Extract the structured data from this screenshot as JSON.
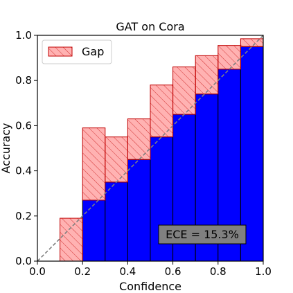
{
  "chart_data": {
    "type": "bar",
    "title": "GAT on Cora",
    "xlabel": "Confidence",
    "ylabel": "Accuracy",
    "xlim": [
      0.0,
      1.0
    ],
    "ylim": [
      0.0,
      1.0
    ],
    "xticks": [
      "0.0",
      "0.2",
      "0.4",
      "0.6",
      "0.8",
      "1.0"
    ],
    "yticks": [
      "0.0",
      "0.2",
      "0.4",
      "0.6",
      "0.8",
      "1.0"
    ],
    "bin_edges": [
      0.1,
      0.2,
      0.3,
      0.4,
      0.5,
      0.6,
      0.7,
      0.8,
      0.9,
      1.0
    ],
    "accuracy": [
      0.0,
      0.27,
      0.35,
      0.45,
      0.55,
      0.65,
      0.74,
      0.85,
      0.95
    ],
    "confidence": [
      0.19,
      0.59,
      0.55,
      0.63,
      0.78,
      0.86,
      0.91,
      0.955,
      0.985
    ],
    "legend": {
      "label": "Gap",
      "location": "upper-left"
    },
    "annotation": "ECE = 15.3%",
    "colors": {
      "accuracy_bar": "#0000ff",
      "gap_fill": "#ff0000",
      "gap_fill_opacity": 0.3,
      "gap_edge": "#c00000",
      "diagonal": "#808080",
      "annotation_box": "#808080"
    },
    "grid": false
  }
}
